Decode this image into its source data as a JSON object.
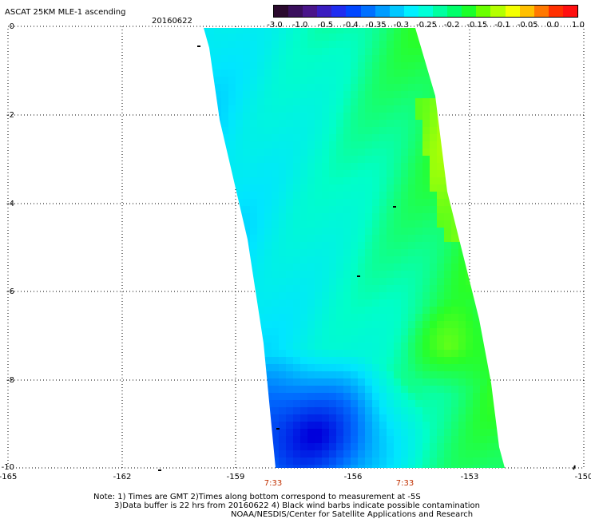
{
  "header": {
    "title": "ASCAT 25KM MLE-1 ascending",
    "date": "20160622"
  },
  "colorbar": {
    "colors": [
      "#2b0a2e",
      "#3a0f5c",
      "#4a158a",
      "#3a1dc0",
      "#1f2cf0",
      "#0046ff",
      "#0070ff",
      "#009cff",
      "#00c8ff",
      "#00f0ff",
      "#00ffd8",
      "#00ffa0",
      "#00ff6a",
      "#1aff2a",
      "#6aff00",
      "#b4ff00",
      "#f4ff00",
      "#ffc000",
      "#ff7800",
      "#ff3000",
      "#ff1010"
    ],
    "labels": [
      "-3.0",
      "-1.0",
      "-0.5",
      "-0.4",
      "-0.35",
      "-0.3",
      "-0.25",
      "-0.2",
      "-0.15",
      "-0.1",
      "-0.05",
      "0.0",
      "1.0"
    ]
  },
  "axes": {
    "y_labels": [
      "0",
      "-2",
      "-4",
      "-6",
      "-8",
      "-10"
    ],
    "x_labels": [
      "-165",
      "-162",
      "-159",
      "-156",
      "-153",
      "-150"
    ],
    "times": [
      "7:33",
      "7:33"
    ]
  },
  "notes": {
    "line1": "Note: 1) Times are GMT 2)Times along bottom correspond to measurement at -5S",
    "line2": "3)Data buffer is 22 hrs from 20160622 4) Black wind barbs indicate possible contamination",
    "line3": "NOAA/NESDIS/Center for Satellite Applications and Research"
  }
}
